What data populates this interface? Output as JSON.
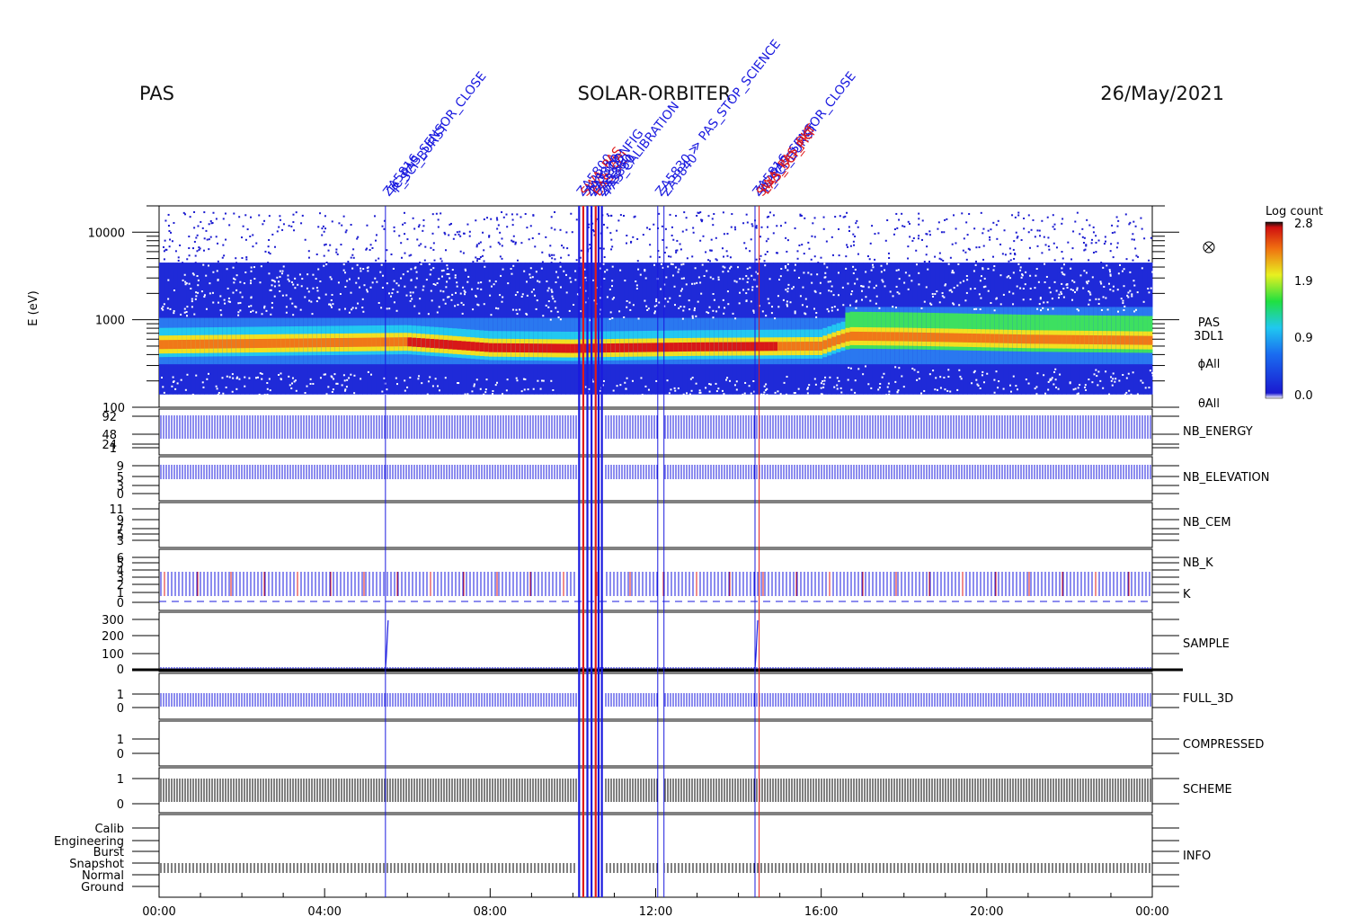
{
  "header": {
    "left": "PAS",
    "center": "SOLAR-ORBITER",
    "right": "26/May/2021"
  },
  "colors": {
    "blue": "#1a1adf",
    "red": "#e01a1a",
    "black": "#000000"
  },
  "chart_data": {
    "type": "heatmap",
    "x_axis": {
      "ticks": [
        "00:00",
        "04:00",
        "08:00",
        "12:00",
        "16:00",
        "20:00",
        "00:00"
      ],
      "range_hours": [
        0,
        24
      ]
    },
    "spectrogram": {
      "ylabel": "E (eV)",
      "y_ticks": [
        "10000",
        "1000",
        "100"
      ],
      "ylim": [
        100,
        20000
      ],
      "scale": "log",
      "right_labels": [
        "PAS",
        "3DL1",
        "ϕAll",
        "θAll"
      ],
      "colorbar": {
        "title": "Log count",
        "ticks": [
          "2.8",
          "1.9",
          "0.9",
          "0.0"
        ],
        "range": [
          0.0,
          2.8
        ]
      },
      "peak_energy_profile": [
        {
          "h": 0,
          "e": 520
        },
        {
          "h": 3,
          "e": 540
        },
        {
          "h": 6,
          "e": 560
        },
        {
          "h": 8,
          "e": 480
        },
        {
          "h": 10,
          "e": 470
        },
        {
          "h": 13,
          "e": 490
        },
        {
          "h": 16,
          "e": 500
        },
        {
          "h": 16.7,
          "e": 650
        },
        {
          "h": 18,
          "e": 640
        },
        {
          "h": 21,
          "e": 600
        },
        {
          "h": 24,
          "e": 580
        }
      ]
    },
    "panels": [
      {
        "name": "NB_ENERGY",
        "color": "blue",
        "y_ticks": [
          "92",
          "48",
          "24",
          "1"
        ]
      },
      {
        "name": "NB_ELEVATION",
        "color": "blue",
        "y_ticks": [
          "9",
          "5",
          "3",
          "0"
        ]
      },
      {
        "name": "NB_CEM",
        "color": "blue",
        "y_ticks": [
          "11",
          "9",
          "7",
          "5",
          "3"
        ]
      },
      {
        "name": "NB_K",
        "color": "red",
        "name2": "K",
        "y_ticks": [
          "6",
          "5",
          "4",
          "3",
          "2",
          "1",
          "0"
        ]
      },
      {
        "name": "SAMPLE",
        "color": "blue",
        "y_ticks": [
          "300",
          "200",
          "100",
          "0"
        ]
      },
      {
        "name": "FULL_3D",
        "color": "blue",
        "y_ticks": [
          "1",
          "0"
        ]
      },
      {
        "name": "COMPRESSED",
        "color": "black",
        "y_ticks": [
          "1",
          "0"
        ]
      },
      {
        "name": "SCHEME",
        "color": "black",
        "y_ticks": [
          "1",
          "0"
        ]
      },
      {
        "name": "INFO",
        "color": "blue",
        "y_ticks": [
          "Calib",
          "Engineering",
          "Burst",
          "Snapshot",
          "Normal",
          "Ground"
        ]
      }
    ],
    "events": [
      {
        "h": 5.47,
        "color": "blue",
        "labels": [
          "ZA5816",
          "TC_PAS_SENSOR_CLOSE",
          "P_SCI_BURST"
        ]
      },
      {
        "h": 10.15,
        "color": "blue",
        "labels": [
          "ZA5800"
        ]
      },
      {
        "h": 10.25,
        "color": "red",
        "labels": [
          "SWA_PAS"
        ]
      },
      {
        "h": 10.35,
        "color": "blue",
        "labels": [
          "ZA5810",
          "PAS_CONFIG"
        ]
      },
      {
        "h": 10.45,
        "color": "blue",
        "labels": [
          "ZA5805"
        ]
      },
      {
        "h": 10.55,
        "color": "red",
        "labels": [
          "EAS_SCI"
        ]
      },
      {
        "h": 10.62,
        "color": "blue",
        "labels": [
          "ZA5860"
        ]
      },
      {
        "h": 10.7,
        "color": "blue",
        "labels": [
          "ZA5850",
          "PAS_CALIBRATION"
        ]
      },
      {
        "h": 12.05,
        "color": "blue",
        "labels": [
          "ZA5830 ≫ PAS_STOP_SCIENCE"
        ]
      },
      {
        "h": 12.2,
        "color": "blue",
        "labels": [
          "ZA5840"
        ]
      },
      {
        "h": 14.4,
        "color": "blue",
        "labels": [
          "ZA5816",
          "TC_PAS_SENSOR_CLOSE",
          "P_SCI_BURST"
        ]
      },
      {
        "h": 14.5,
        "color": "red",
        "labels": [
          "SWA_PAS_PKT",
          "EAS_SCI_PKT"
        ]
      }
    ]
  }
}
